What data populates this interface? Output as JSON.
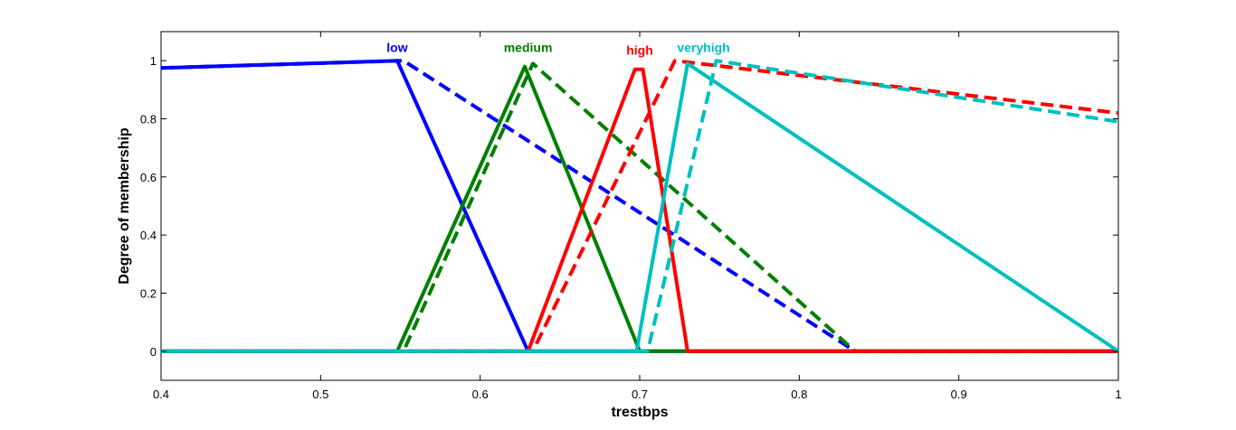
{
  "chart_data": {
    "type": "line",
    "title": "",
    "xlabel": "trestbps",
    "ylabel": "Degree of membership",
    "xlim": [
      0.4,
      1.0
    ],
    "ylim": [
      -0.1,
      1.1
    ],
    "xticks": [
      0.4,
      0.5,
      0.6,
      0.7,
      0.8,
      0.9,
      1.0
    ],
    "xtick_labels": [
      "0.4",
      "0.5",
      "0.6",
      "0.7",
      "0.8",
      "0.9",
      "1"
    ],
    "yticks": [
      0,
      0.2,
      0.4,
      0.6,
      0.8,
      1.0
    ],
    "ytick_labels": [
      "0",
      "0.2",
      "0.4",
      "0.6",
      "0.8",
      "1"
    ],
    "grid": false,
    "legend": "none",
    "series": [
      {
        "name": "low",
        "color": "#0000ff",
        "dash": false,
        "x": [
          0.4,
          0.548,
          0.63,
          1.0
        ],
        "y": [
          0.975,
          1.0,
          0.0,
          0.0
        ]
      },
      {
        "name": "low",
        "color": "#0000ff",
        "dash": true,
        "x": [
          0.4,
          0.552,
          0.835,
          1.0
        ],
        "y": [
          0.975,
          1.0,
          0.0,
          0.0
        ]
      },
      {
        "name": "medium",
        "color": "#007f00",
        "dash": false,
        "x": [
          0.4,
          0.548,
          0.628,
          0.7,
          1.0
        ],
        "y": [
          0.0,
          0.0,
          0.98,
          0.0,
          0.0
        ]
      },
      {
        "name": "medium",
        "color": "#007f00",
        "dash": true,
        "x": [
          0.4,
          0.552,
          0.633,
          0.835,
          1.0
        ],
        "y": [
          0.0,
          0.0,
          0.99,
          0.0,
          0.0
        ]
      },
      {
        "name": "high",
        "color": "#ff0000",
        "dash": false,
        "x": [
          0.4,
          0.63,
          0.697,
          0.702,
          0.73,
          1.0
        ],
        "y": [
          0.0,
          0.0,
          0.97,
          0.97,
          0.0,
          0.0
        ]
      },
      {
        "name": "high",
        "color": "#ff0000",
        "dash": true,
        "x": [
          0.4,
          0.633,
          0.722,
          1.0
        ],
        "y": [
          0.0,
          0.0,
          1.0,
          0.82
        ]
      },
      {
        "name": "veryhigh",
        "color": "#00bfbf",
        "dash": false,
        "x": [
          0.4,
          0.698,
          0.73,
          1.0
        ],
        "y": [
          0.0,
          0.0,
          0.99,
          0.0
        ]
      },
      {
        "name": "veryhigh",
        "color": "#00bfbf",
        "dash": true,
        "x": [
          0.4,
          0.705,
          0.748,
          1.0
        ],
        "y": [
          0.0,
          0.0,
          1.0,
          0.79
        ]
      }
    ],
    "annotations": [
      {
        "text": "low",
        "color": "#0000ff",
        "x": 0.548,
        "y": 1.03
      },
      {
        "text": "medium",
        "color": "#007f00",
        "x": 0.63,
        "y": 1.03
      },
      {
        "text": "high",
        "color": "#ff0000",
        "x": 0.7,
        "y": 1.02
      },
      {
        "text": "veryhigh",
        "color": "#00bfbf",
        "x": 0.74,
        "y": 1.03
      }
    ]
  }
}
